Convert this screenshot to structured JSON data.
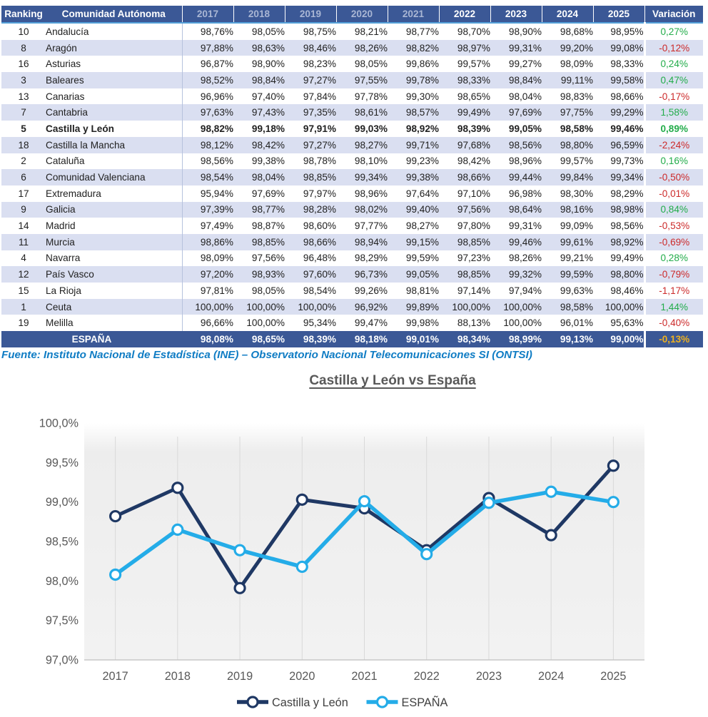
{
  "table": {
    "headers": {
      "ranking": "Ranking",
      "region": "Comunidad Autónoma",
      "years": [
        "2017",
        "2018",
        "2019",
        "2020",
        "2021",
        "2022",
        "2023",
        "2024",
        "2025"
      ],
      "variation": "Variación"
    },
    "rows": [
      {
        "rank": "10",
        "name": "Andalucía",
        "values": [
          "98,76%",
          "98,05%",
          "98,75%",
          "98,21%",
          "98,77%",
          "98,70%",
          "98,90%",
          "98,68%",
          "98,95%"
        ],
        "variation": "0,27%"
      },
      {
        "rank": "8",
        "name": "Aragón",
        "values": [
          "97,88%",
          "98,63%",
          "98,46%",
          "98,26%",
          "98,82%",
          "98,97%",
          "99,31%",
          "99,20%",
          "99,08%"
        ],
        "variation": "-0,12%"
      },
      {
        "rank": "16",
        "name": "Asturias",
        "values": [
          "96,87%",
          "98,90%",
          "98,23%",
          "98,05%",
          "99,86%",
          "99,57%",
          "99,27%",
          "98,09%",
          "98,33%"
        ],
        "variation": "0,24%"
      },
      {
        "rank": "3",
        "name": "Baleares",
        "values": [
          "98,52%",
          "98,84%",
          "97,27%",
          "97,55%",
          "99,78%",
          "98,33%",
          "98,84%",
          "99,11%",
          "99,58%"
        ],
        "variation": "0,47%"
      },
      {
        "rank": "13",
        "name": "Canarias",
        "values": [
          "96,96%",
          "97,40%",
          "97,84%",
          "97,78%",
          "99,30%",
          "98,65%",
          "98,04%",
          "98,83%",
          "98,66%"
        ],
        "variation": "-0,17%"
      },
      {
        "rank": "7",
        "name": "Cantabria",
        "values": [
          "97,63%",
          "97,43%",
          "97,35%",
          "98,61%",
          "98,57%",
          "99,49%",
          "97,69%",
          "97,75%",
          "99,29%"
        ],
        "variation": "1,58%"
      },
      {
        "rank": "5",
        "name": "Castilla y León",
        "values": [
          "98,82%",
          "99,18%",
          "97,91%",
          "99,03%",
          "98,92%",
          "98,39%",
          "99,05%",
          "98,58%",
          "99,46%"
        ],
        "variation": "0,89%",
        "emphasis": true
      },
      {
        "rank": "18",
        "name": "Castilla la Mancha",
        "values": [
          "98,12%",
          "98,42%",
          "97,27%",
          "98,27%",
          "99,71%",
          "97,68%",
          "98,56%",
          "98,80%",
          "96,59%"
        ],
        "variation": "-2,24%"
      },
      {
        "rank": "2",
        "name": "Cataluña",
        "values": [
          "98,56%",
          "99,38%",
          "98,78%",
          "98,10%",
          "99,23%",
          "98,42%",
          "98,96%",
          "99,57%",
          "99,73%"
        ],
        "variation": "0,16%"
      },
      {
        "rank": "6",
        "name": "Comunidad Valenciana",
        "values": [
          "98,54%",
          "98,04%",
          "98,85%",
          "99,34%",
          "99,38%",
          "98,66%",
          "99,44%",
          "99,84%",
          "99,34%"
        ],
        "variation": "-0,50%"
      },
      {
        "rank": "17",
        "name": "Extremadura",
        "values": [
          "95,94%",
          "97,69%",
          "97,97%",
          "98,96%",
          "97,64%",
          "97,10%",
          "96,98%",
          "98,30%",
          "98,29%"
        ],
        "variation": "-0,01%"
      },
      {
        "rank": "9",
        "name": "Galicia",
        "values": [
          "97,39%",
          "98,77%",
          "98,28%",
          "98,02%",
          "99,40%",
          "97,56%",
          "98,64%",
          "98,16%",
          "98,98%"
        ],
        "variation": "0,84%"
      },
      {
        "rank": "14",
        "name": "Madrid",
        "values": [
          "97,49%",
          "98,87%",
          "98,60%",
          "97,77%",
          "98,27%",
          "97,80%",
          "99,31%",
          "99,09%",
          "98,56%"
        ],
        "variation": "-0,53%"
      },
      {
        "rank": "11",
        "name": "Murcia",
        "values": [
          "98,86%",
          "98,85%",
          "98,66%",
          "98,94%",
          "99,15%",
          "98,85%",
          "99,46%",
          "99,61%",
          "98,92%"
        ],
        "variation": "-0,69%"
      },
      {
        "rank": "4",
        "name": "Navarra",
        "values": [
          "98,09%",
          "97,56%",
          "96,48%",
          "98,29%",
          "99,59%",
          "97,23%",
          "98,26%",
          "99,21%",
          "99,49%"
        ],
        "variation": "0,28%"
      },
      {
        "rank": "12",
        "name": "País Vasco",
        "values": [
          "97,20%",
          "98,93%",
          "97,60%",
          "96,73%",
          "99,05%",
          "98,85%",
          "99,32%",
          "99,59%",
          "98,80%"
        ],
        "variation": "-0,79%"
      },
      {
        "rank": "15",
        "name": "La Rioja",
        "values": [
          "97,81%",
          "98,05%",
          "98,54%",
          "99,26%",
          "98,81%",
          "97,14%",
          "97,94%",
          "99,63%",
          "98,46%"
        ],
        "variation": "-1,17%"
      },
      {
        "rank": "1",
        "name": "Ceuta",
        "values": [
          "100,00%",
          "100,00%",
          "100,00%",
          "96,92%",
          "99,89%",
          "100,00%",
          "100,00%",
          "98,58%",
          "100,00%"
        ],
        "variation": "1,44%"
      },
      {
        "rank": "19",
        "name": "Melilla",
        "values": [
          "96,66%",
          "100,00%",
          "95,34%",
          "99,47%",
          "99,98%",
          "88,13%",
          "100,00%",
          "96,01%",
          "95,63%"
        ],
        "variation": "-0,40%"
      }
    ],
    "total_row": {
      "name": "ESPAÑA",
      "values": [
        "98,08%",
        "98,65%",
        "98,39%",
        "98,18%",
        "99,01%",
        "98,34%",
        "98,99%",
        "99,13%",
        "99,00%"
      ],
      "variation": "-0,13%"
    }
  },
  "source_note": "Fuente: Instituto Nacional de Estadística (INE) – Observatorio Nacional Telecomunicaciones SI (ONTSI)",
  "chart_data": {
    "type": "line",
    "title": "Castilla y León vs España",
    "x": [
      "2017",
      "2018",
      "2019",
      "2020",
      "2021",
      "2022",
      "2023",
      "2024",
      "2025"
    ],
    "series": [
      {
        "name": "Castilla y León",
        "color": "#1F3864",
        "values": [
          98.82,
          99.18,
          97.91,
          99.03,
          98.92,
          98.39,
          99.05,
          98.58,
          99.46
        ]
      },
      {
        "name": "ESPAÑA",
        "color": "#24ACE8",
        "values": [
          98.08,
          98.65,
          98.39,
          98.18,
          99.01,
          98.34,
          98.99,
          99.13,
          99.0
        ]
      }
    ],
    "xlabel": "",
    "ylabel": "",
    "ylim": [
      97.0,
      100.0
    ],
    "y_tick_step": 0.5,
    "y_tick_labels": [
      "100,0%",
      "99,5%",
      "99,0%",
      "98,5%",
      "98,0%",
      "97,5%",
      "97,0%"
    ],
    "grid": "vertical",
    "legend_position": "bottom",
    "marker": "open-circle"
  },
  "colors": {
    "header_bg": "#3B5896",
    "header_muted_year": "#A9B6D4",
    "row_alt_bg": "#DADFF1",
    "header_underline": "#54A0D8",
    "positive": "#22AC4A",
    "negative": "#CC2B2B",
    "total_variation": "#EDB120",
    "source_text": "#0F7CC4",
    "chart_text": "#595959",
    "gridline": "#D9D9D9"
  }
}
